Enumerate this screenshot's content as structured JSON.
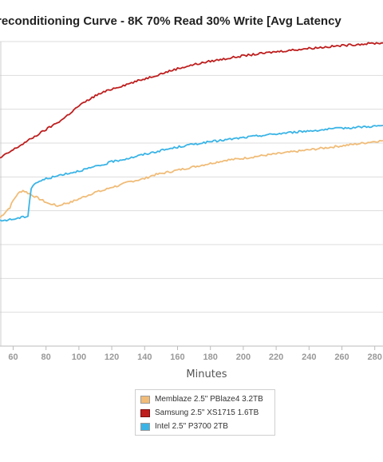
{
  "chart_data": {
    "type": "line",
    "title": "reconditioning Curve - 8K 70% Read 30% Write [Avg Latency",
    "xlabel": "Minutes",
    "ylabel": "",
    "xlim": [
      52,
      285
    ],
    "ylim": [
      0,
      9
    ],
    "x_ticks": [
      60,
      80,
      100,
      120,
      140,
      160,
      180,
      200,
      220,
      240,
      260,
      280
    ],
    "grid": true,
    "legend_position": "bottom",
    "series": [
      {
        "name": "Memblaze 2.5\" PBlaze4 3.2TB",
        "color": "#f0bc78",
        "x": [
          52,
          55,
          58,
          60,
          62,
          64,
          66,
          68,
          70,
          72,
          74,
          76,
          78,
          80,
          82,
          84,
          86,
          88,
          90,
          95,
          100,
          105,
          110,
          115,
          120,
          125,
          130,
          135,
          140,
          145,
          150,
          155,
          160,
          165,
          170,
          175,
          180,
          185,
          190,
          195,
          200,
          210,
          220,
          230,
          240,
          250,
          260,
          270,
          280,
          285
        ],
        "y": [
          3.8,
          3.95,
          4.1,
          4.3,
          4.45,
          4.55,
          4.6,
          4.55,
          4.5,
          4.45,
          4.4,
          4.35,
          4.3,
          4.25,
          4.2,
          4.2,
          4.15,
          4.15,
          4.2,
          4.25,
          4.35,
          4.45,
          4.55,
          4.6,
          4.7,
          4.75,
          4.85,
          4.9,
          4.95,
          5.05,
          5.1,
          5.15,
          5.2,
          5.25,
          5.3,
          5.35,
          5.4,
          5.45,
          5.5,
          5.52,
          5.55,
          5.62,
          5.68,
          5.74,
          5.8,
          5.86,
          5.92,
          5.98,
          6.05,
          6.07
        ]
      },
      {
        "name": "Samsung 2.5\" XS1715 1.6TB",
        "color": "#be1e1e",
        "x": [
          52,
          55,
          60,
          65,
          70,
          75,
          80,
          85,
          90,
          95,
          100,
          105,
          110,
          115,
          120,
          130,
          140,
          150,
          160,
          170,
          180,
          190,
          200,
          210,
          220,
          230,
          240,
          250,
          260,
          270,
          280,
          285
        ],
        "y": [
          5.55,
          5.65,
          5.8,
          5.95,
          6.1,
          6.25,
          6.4,
          6.55,
          6.7,
          6.9,
          7.1,
          7.25,
          7.4,
          7.5,
          7.6,
          7.75,
          7.9,
          8.05,
          8.2,
          8.32,
          8.42,
          8.5,
          8.58,
          8.64,
          8.7,
          8.75,
          8.8,
          8.84,
          8.88,
          8.92,
          8.95,
          8.96
        ]
      },
      {
        "name": "Intel 2.5\" P3700 2TB",
        "color": "#3ab4e6",
        "x": [
          52,
          55,
          60,
          65,
          69,
          70,
          71,
          72,
          73,
          75,
          78,
          80,
          85,
          90,
          95,
          100,
          105,
          110,
          115,
          120,
          130,
          140,
          150,
          160,
          170,
          180,
          190,
          200,
          210,
          220,
          230,
          240,
          250,
          260,
          270,
          280,
          285
        ],
        "y": [
          3.7,
          3.72,
          3.75,
          3.8,
          3.85,
          4.3,
          4.65,
          4.75,
          4.8,
          4.85,
          4.9,
          4.95,
          5.0,
          5.08,
          5.12,
          5.18,
          5.24,
          5.3,
          5.36,
          5.45,
          5.55,
          5.67,
          5.78,
          5.88,
          5.97,
          6.04,
          6.1,
          6.16,
          6.22,
          6.27,
          6.32,
          6.36,
          6.4,
          6.44,
          6.47,
          6.5,
          6.52
        ]
      }
    ]
  }
}
